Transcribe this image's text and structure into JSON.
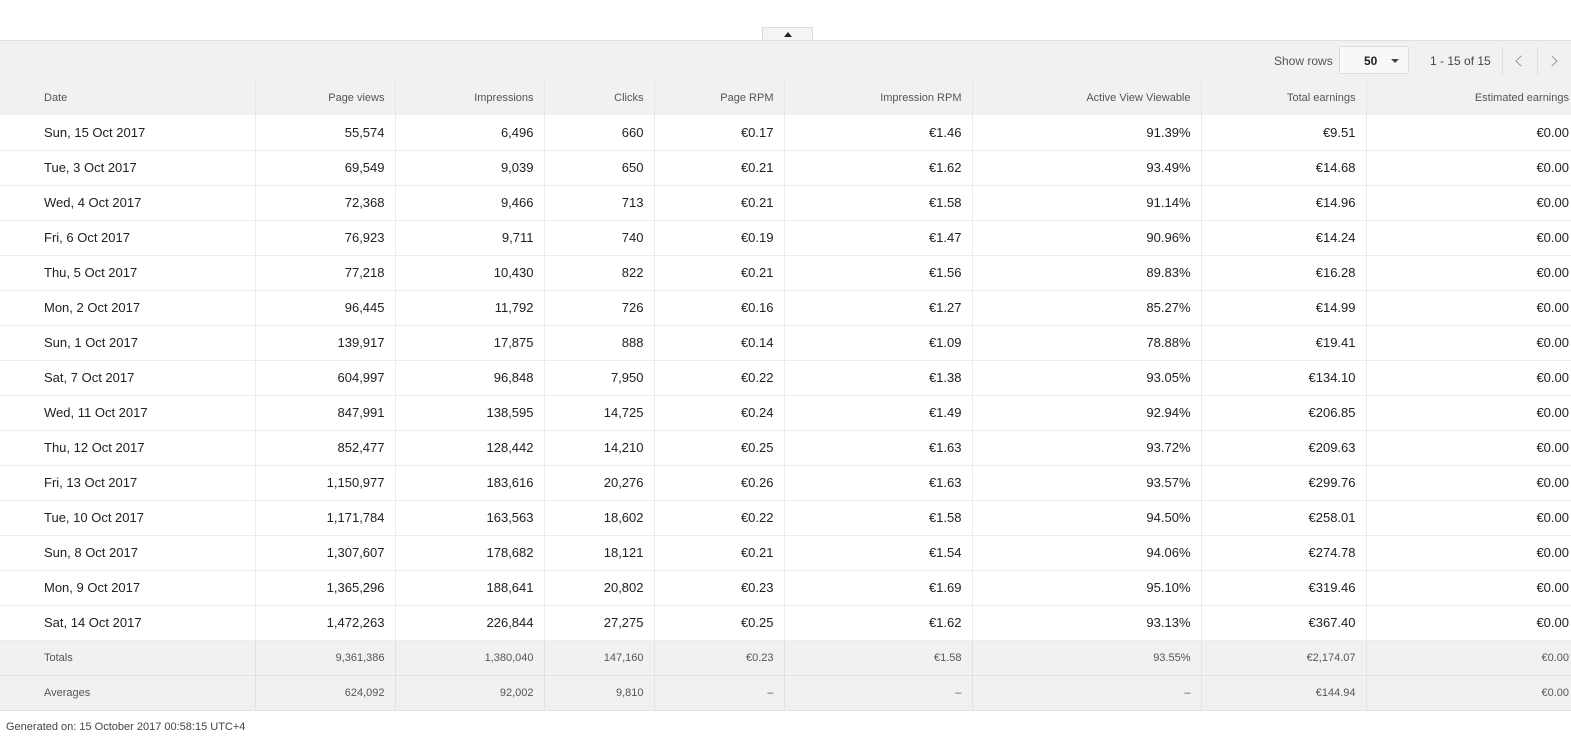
{
  "toolbar": {
    "show_rows_label": "Show rows",
    "rows_value": "50",
    "pager_text": "1 - 15 of 15",
    "prev_icon": "chevron-left-icon",
    "next_icon": "chevron-right-icon"
  },
  "collapse_icon": "chevron-up-icon",
  "table": {
    "columns": [
      "Date",
      "Page views",
      "Impressions",
      "Clicks",
      "Page RPM",
      "Impression RPM",
      "Active View Viewable",
      "Total earnings",
      "Estimated earnings"
    ],
    "rows": [
      [
        "Sun, 15 Oct 2017",
        "55,574",
        "6,496",
        "660",
        "€0.17",
        "€1.46",
        "91.39%",
        "€9.51",
        "€0.00"
      ],
      [
        "Tue, 3 Oct 2017",
        "69,549",
        "9,039",
        "650",
        "€0.21",
        "€1.62",
        "93.49%",
        "€14.68",
        "€0.00"
      ],
      [
        "Wed, 4 Oct 2017",
        "72,368",
        "9,466",
        "713",
        "€0.21",
        "€1.58",
        "91.14%",
        "€14.96",
        "€0.00"
      ],
      [
        "Fri, 6 Oct 2017",
        "76,923",
        "9,711",
        "740",
        "€0.19",
        "€1.47",
        "90.96%",
        "€14.24",
        "€0.00"
      ],
      [
        "Thu, 5 Oct 2017",
        "77,218",
        "10,430",
        "822",
        "€0.21",
        "€1.56",
        "89.83%",
        "€16.28",
        "€0.00"
      ],
      [
        "Mon, 2 Oct 2017",
        "96,445",
        "11,792",
        "726",
        "€0.16",
        "€1.27",
        "85.27%",
        "€14.99",
        "€0.00"
      ],
      [
        "Sun, 1 Oct 2017",
        "139,917",
        "17,875",
        "888",
        "€0.14",
        "€1.09",
        "78.88%",
        "€19.41",
        "€0.00"
      ],
      [
        "Sat, 7 Oct 2017",
        "604,997",
        "96,848",
        "7,950",
        "€0.22",
        "€1.38",
        "93.05%",
        "€134.10",
        "€0.00"
      ],
      [
        "Wed, 11 Oct 2017",
        "847,991",
        "138,595",
        "14,725",
        "€0.24",
        "€1.49",
        "92.94%",
        "€206.85",
        "€0.00"
      ],
      [
        "Thu, 12 Oct 2017",
        "852,477",
        "128,442",
        "14,210",
        "€0.25",
        "€1.63",
        "93.72%",
        "€209.63",
        "€0.00"
      ],
      [
        "Fri, 13 Oct 2017",
        "1,150,977",
        "183,616",
        "20,276",
        "€0.26",
        "€1.63",
        "93.57%",
        "€299.76",
        "€0.00"
      ],
      [
        "Tue, 10 Oct 2017",
        "1,171,784",
        "163,563",
        "18,602",
        "€0.22",
        "€1.58",
        "94.50%",
        "€258.01",
        "€0.00"
      ],
      [
        "Sun, 8 Oct 2017",
        "1,307,607",
        "178,682",
        "18,121",
        "€0.21",
        "€1.54",
        "94.06%",
        "€274.78",
        "€0.00"
      ],
      [
        "Mon, 9 Oct 2017",
        "1,365,296",
        "188,641",
        "20,802",
        "€0.23",
        "€1.69",
        "95.10%",
        "€319.46",
        "€0.00"
      ],
      [
        "Sat, 14 Oct 2017",
        "1,472,263",
        "226,844",
        "27,275",
        "€0.25",
        "€1.62",
        "93.13%",
        "€367.40",
        "€0.00"
      ]
    ],
    "totals": [
      "Totals",
      "9,361,386",
      "1,380,040",
      "147,160",
      "€0.23",
      "€1.58",
      "93.55%",
      "€2,174.07",
      "€0.00"
    ],
    "averages": [
      "Averages",
      "624,092",
      "92,002",
      "9,810",
      "–",
      "–",
      "–",
      "€144.94",
      "€0.00"
    ]
  },
  "footer": {
    "generated": "Generated on: 15 October 2017 00:58:15 UTC+4"
  }
}
